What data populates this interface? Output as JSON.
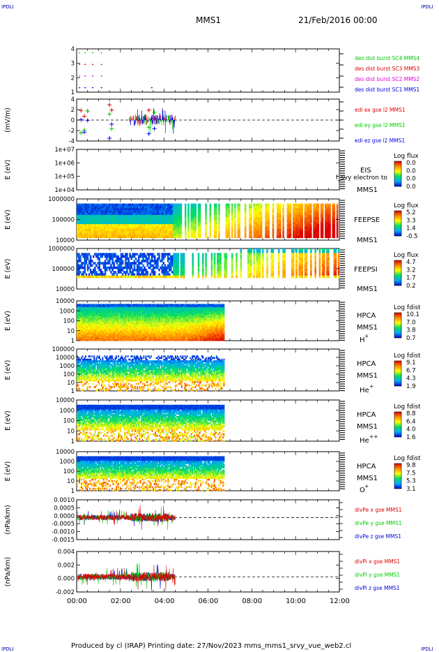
{
  "corners": {
    "tl": "IPDLI",
    "tr": "IPDLI",
    "bl": "IPDLI",
    "br": "IPDLI"
  },
  "header": {
    "spacecraft": "MMS1",
    "date": "21/Feb/2016 00:00"
  },
  "footer": {
    "text": "Produced by cl (IRAP)    Printing date: 27/Nov/2023    mms_mms1_srvy_vue_web2.cl"
  },
  "colors": {
    "red": "#dd0000",
    "green": "#00cc00",
    "blue": "#0000dd",
    "magenta": "#dd00dd",
    "black": "#000000"
  },
  "chart_data": [
    {
      "type": "scatter",
      "id": "des-dist-burst",
      "yticks": [
        "4",
        "3",
        "2",
        "1"
      ],
      "ylim": [
        0.5,
        4.5
      ],
      "series": [
        {
          "name": "des dist burst SC1 MMS1",
          "color": "#0000dd",
          "y": 1,
          "x": [
            0.1,
            0.35,
            0.7,
            1.1,
            3.4
          ]
        },
        {
          "name": "des dist burst SC2 MMS2",
          "color": "#dd00dd",
          "y": 2,
          "x": [
            0.1,
            0.35,
            0.7,
            1.1
          ]
        },
        {
          "name": "des dist burst SC3 MMS3",
          "color": "#dd0000",
          "y": 3,
          "x": [
            0.1,
            0.35,
            0.7,
            1.1
          ]
        },
        {
          "name": "des dist burst SC4 MMS4",
          "color": "#00cc00",
          "y": 4,
          "x": [
            0.1,
            0.35,
            0.7,
            1.1
          ]
        }
      ]
    },
    {
      "type": "scatter",
      "id": "edi-e-gse",
      "ylabel": "(mV/m)",
      "yticks": [
        "4",
        "2",
        "0",
        "-2",
        "-4"
      ],
      "ylim": [
        -4.5,
        4.5
      ],
      "series": [
        {
          "name": "edi ex gse l2 MMS1",
          "color": "#dd0000"
        },
        {
          "name": "edi ey gse l2 MMS1",
          "color": "#00cc00"
        },
        {
          "name": "edi ez gse l2 MMS1",
          "color": "#0000dd"
        }
      ],
      "x_range_hours": [
        0.1,
        4.5
      ]
    },
    {
      "type": "heatmap",
      "id": "eis",
      "ylabel": "E (eV)",
      "yticks": [
        "1e+07",
        "1e+06",
        "1e+05",
        "1e+04"
      ],
      "instrument": "EIS",
      "sc": "MMS1",
      "extra": "l_svy electron to",
      "colorbar": {
        "title": "Log flux",
        "ticks": [
          "0.0",
          "0.0",
          "0.0",
          "0.0"
        ]
      }
    },
    {
      "type": "heatmap",
      "id": "feeps-e",
      "ylabel": "E (eV)",
      "yticks": [
        "1000000",
        "100000",
        "10000"
      ],
      "instrument": "FEEPSE",
      "sc": "MMS1",
      "colorbar": {
        "title": "Log flux",
        "ticks": [
          "5.2",
          "3.3",
          "1.4",
          "-0.5"
        ]
      },
      "x_range_hours": [
        0,
        12
      ]
    },
    {
      "type": "heatmap",
      "id": "feeps-i",
      "ylabel": "E (eV)",
      "yticks": [
        "1000000",
        "100000",
        "10000"
      ],
      "instrument": "FEEPSI",
      "sc": "MMS1",
      "colorbar": {
        "title": "Log flux",
        "ticks": [
          "4.7",
          "3.2",
          "1.7",
          "0.2"
        ]
      },
      "x_range_hours": [
        0,
        12
      ]
    },
    {
      "type": "heatmap",
      "id": "hpca-h",
      "ylabel": "E (eV)",
      "yticks": [
        "10000",
        "1000",
        "100",
        "10",
        "1"
      ],
      "instrument": "HPCA",
      "sc": "MMS1",
      "species": "H",
      "charge": "+",
      "colorbar": {
        "title": "Log fdist",
        "ticks": [
          "10.1",
          "7.0",
          "3.8",
          "0.7"
        ]
      },
      "x_range_hours": [
        0,
        6.75
      ]
    },
    {
      "type": "heatmap",
      "id": "hpca-he",
      "ylabel": "E (eV)",
      "yticks": [
        "100000",
        "10000",
        "1000",
        "100",
        "10",
        "1"
      ],
      "instrument": "HPCA",
      "sc": "MMS1",
      "species": "He",
      "charge": "+",
      "colorbar": {
        "title": "Log fdist",
        "ticks": [
          "9.1",
          "6.7",
          "4.3",
          "1.9"
        ]
      },
      "x_range_hours": [
        0,
        6.75
      ]
    },
    {
      "type": "heatmap",
      "id": "hpca-he2",
      "ylabel": "E (eV)",
      "yticks": [
        "10000",
        "1000",
        "100",
        "10",
        "1"
      ],
      "instrument": "HPCA",
      "sc": "MMS1",
      "species": "He",
      "charge": "++",
      "colorbar": {
        "title": "Log fdist",
        "ticks": [
          "8.8",
          "6.4",
          "4.0",
          "1.6"
        ]
      },
      "x_range_hours": [
        0,
        6.75
      ]
    },
    {
      "type": "heatmap",
      "id": "hpca-o",
      "ylabel": "E (eV)",
      "yticks": [
        "10000",
        "1000",
        "100",
        "10",
        "1"
      ],
      "instrument": "HPCA",
      "sc": "MMS1",
      "species": "O",
      "charge": "+",
      "colorbar": {
        "title": "Log fdist",
        "ticks": [
          "9.8",
          "7.5",
          "5.3",
          "3.1"
        ]
      },
      "x_range_hours": [
        0,
        6.75
      ]
    },
    {
      "type": "line",
      "id": "divpe",
      "ylabel": "(nPa/km)",
      "yticks": [
        "0.0010",
        "0.0005",
        "0.0000",
        "-0.0005",
        "-0.0010",
        "-0.0015"
      ],
      "ylim": [
        -0.0015,
        0.0012
      ],
      "series": [
        {
          "name": "divPe x gse MMS1",
          "color": "#dd0000"
        },
        {
          "name": "divPe y gse MMS1",
          "color": "#00cc00"
        },
        {
          "name": "divPe z gse MMS1",
          "color": "#0000dd"
        }
      ],
      "x_range_hours": [
        0,
        4.5
      ]
    },
    {
      "type": "line",
      "id": "divpi",
      "ylabel": "(nPa/km)",
      "yticks": [
        "0.004",
        "0.002",
        "0.000",
        "-0.002"
      ],
      "ylim": [
        -0.003,
        0.005
      ],
      "series": [
        {
          "name": "divPi x gse MMS1",
          "color": "#dd0000"
        },
        {
          "name": "divPi y gse MMS1",
          "color": "#00cc00"
        },
        {
          "name": "divPi z gse MMS1",
          "color": "#0000dd"
        }
      ],
      "x_range_hours": [
        0,
        4.5
      ]
    }
  ],
  "xaxis": {
    "ticks": [
      "00:00",
      "02:00",
      "04:00",
      "06:00",
      "08:00",
      "10:00",
      "12:00"
    ],
    "range_hours": [
      0,
      12
    ]
  }
}
